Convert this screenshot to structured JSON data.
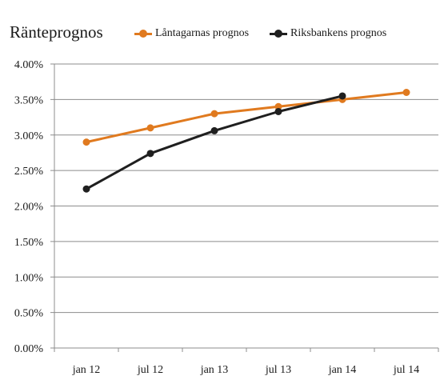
{
  "chart_data": {
    "type": "line",
    "title": "Ränteprognos",
    "xlabel": "",
    "ylabel": "",
    "categories": [
      "jan 12",
      "jul 12",
      "jan 13",
      "jul 13",
      "jan 14",
      "jul 14"
    ],
    "ylim": [
      0,
      4
    ],
    "yticks": [
      "0.00%",
      "0.50%",
      "1.00%",
      "1.50%",
      "2.00%",
      "2.50%",
      "3.00%",
      "3.50%",
      "4.00%"
    ],
    "grid": true,
    "legend_position": "top",
    "series": [
      {
        "name": "Låntagarnas prognos",
        "color": "#e07a1f",
        "values": [
          2.9,
          3.1,
          3.3,
          3.4,
          3.5,
          3.6
        ]
      },
      {
        "name": "Riksbankens prognos",
        "color": "#1f1f1f",
        "values": [
          2.24,
          2.74,
          3.06,
          3.33,
          3.55,
          null
        ]
      }
    ]
  }
}
